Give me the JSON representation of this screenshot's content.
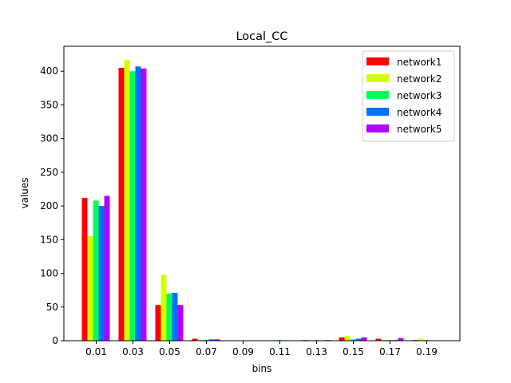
{
  "chart_data": {
    "type": "bar",
    "title": "Local_CC",
    "xlabel": "bins",
    "ylabel": "values",
    "categories": [
      "0.01",
      "0.03",
      "0.05",
      "0.07",
      "0.09",
      "0.11",
      "0.13",
      "0.15",
      "0.17",
      "0.19"
    ],
    "ylim": [
      0,
      437
    ],
    "yticks": [
      0,
      50,
      100,
      150,
      200,
      250,
      300,
      350,
      400
    ],
    "grid": false,
    "legend_position": "top-right",
    "series": [
      {
        "name": "network1",
        "color": "#ff0000",
        "values": [
          212,
          405,
          53,
          3,
          0,
          0,
          1,
          5,
          3,
          1
        ]
      },
      {
        "name": "network2",
        "color": "#d4ff00",
        "values": [
          155,
          417,
          98,
          1,
          0,
          0,
          0,
          7,
          1,
          3
        ]
      },
      {
        "name": "network3",
        "color": "#00ff5a",
        "values": [
          208,
          400,
          70,
          1,
          0,
          1,
          1,
          2,
          1,
          1
        ]
      },
      {
        "name": "network4",
        "color": "#0070ff",
        "values": [
          200,
          407,
          71,
          2,
          0,
          0,
          0,
          3,
          1,
          0
        ]
      },
      {
        "name": "network5",
        "color": "#b400ff",
        "values": [
          215,
          404,
          53,
          2,
          0,
          0,
          1,
          5,
          4,
          0
        ]
      }
    ]
  }
}
